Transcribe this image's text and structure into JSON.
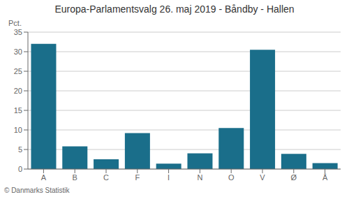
{
  "chart_data": {
    "type": "bar",
    "title": "Europa-Parlamentsvalg 26. maj 2019 - Båndby - Hallen",
    "categories": [
      "A",
      "B",
      "C",
      "F",
      "I",
      "N",
      "O",
      "V",
      "Ø",
      "Å"
    ],
    "values": [
      32.0,
      5.8,
      2.5,
      9.2,
      1.4,
      4.0,
      10.5,
      30.5,
      3.9,
      1.5
    ],
    "color": "#1a6e8a",
    "ylabel": "Pct.",
    "ylim": [
      0,
      35
    ],
    "yticks": [
      0,
      5,
      10,
      15,
      20,
      25,
      30,
      35
    ],
    "grid": true,
    "footer": "© Danmarks Statistik"
  }
}
